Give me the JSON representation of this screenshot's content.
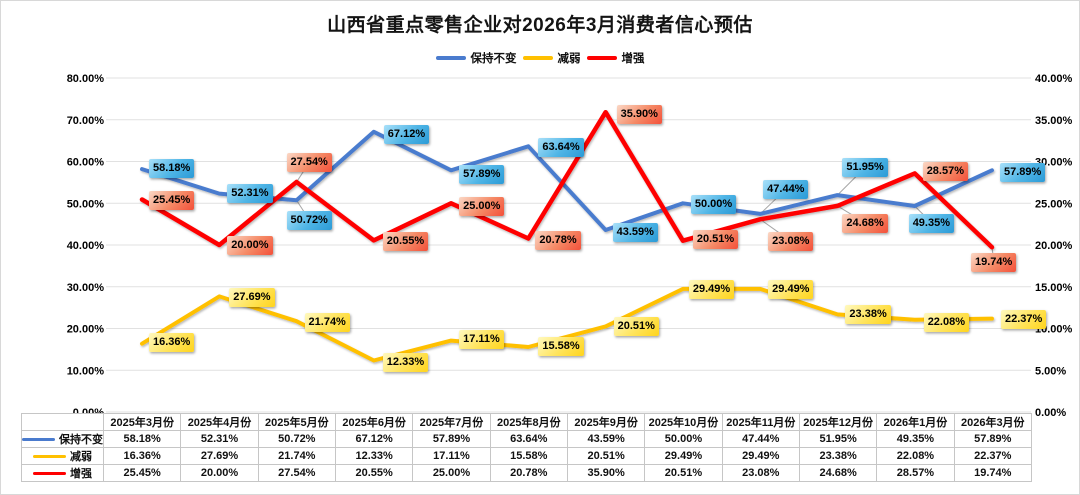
{
  "title": "山西省重点零售企业对2026年3月消费者信心预估",
  "chart_data": {
    "type": "line",
    "categories": [
      "2025年3月份",
      "2025年4月份",
      "2025年5月份",
      "2025年6月份",
      "2025年7月份",
      "2025年8月份",
      "2025年9月份",
      "2025年10月份",
      "2025年11月份",
      "2025年12月份",
      "2026年1月份",
      "2026年3月份"
    ],
    "series": [
      {
        "name": "保持不变",
        "color": "#4a7bce",
        "axis": "left",
        "values": [
          58.18,
          52.31,
          50.72,
          67.12,
          57.89,
          63.64,
          43.59,
          50.0,
          47.44,
          51.95,
          49.35,
          57.89
        ]
      },
      {
        "name": "减弱",
        "color": "#ffc000",
        "axis": "left",
        "values": [
          16.36,
          27.69,
          21.74,
          12.33,
          17.11,
          15.58,
          20.51,
          29.49,
          29.49,
          23.38,
          22.08,
          22.37
        ]
      },
      {
        "name": "增强",
        "color": "#fe0000",
        "axis": "right",
        "values": [
          25.45,
          20.0,
          27.54,
          20.55,
          25.0,
          20.78,
          35.9,
          20.51,
          23.08,
          24.68,
          28.57,
          19.74
        ]
      }
    ],
    "left_axis": {
      "min": 0,
      "max": 80,
      "step": 10,
      "tick_format": "0.00%"
    },
    "right_axis": {
      "min": 0,
      "max": 40,
      "step": 5,
      "tick_format": "0.00%"
    },
    "grid": true,
    "legend_position": "top",
    "value_suffix": "%",
    "grid_color": "#e1e1e1",
    "leader_color": "#a6a6a6"
  }
}
